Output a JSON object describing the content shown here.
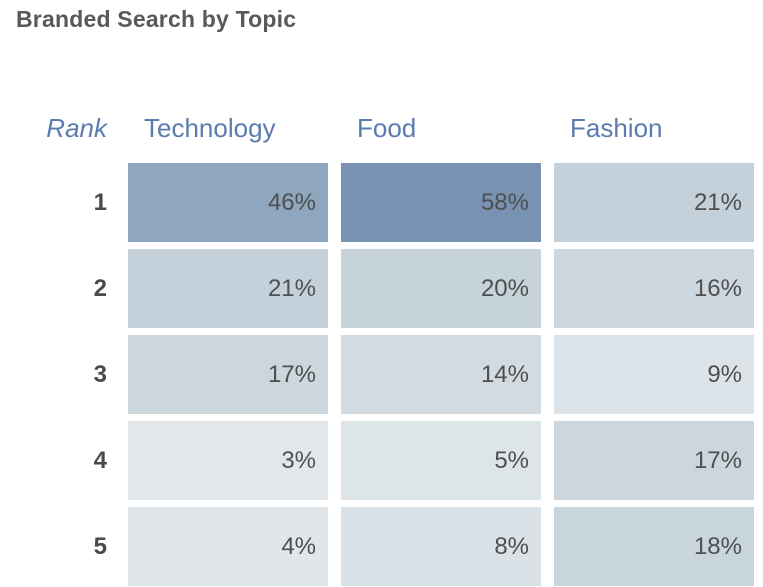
{
  "title": "Branded Search by Topic",
  "accent_color": "#5b7cae",
  "text_color": "#4f4f4f",
  "chart_data": {
    "type": "heatmap",
    "title": "Branded Search by Topic",
    "rank_header": "Rank",
    "columns": [
      "Technology",
      "Food",
      "Fashion"
    ],
    "categories": [
      "1",
      "2",
      "3",
      "4",
      "5"
    ],
    "series": [
      {
        "name": "Technology",
        "values": [
          46,
          21,
          17,
          3,
          4
        ]
      },
      {
        "name": "Food",
        "values": [
          58,
          20,
          14,
          5,
          8
        ]
      },
      {
        "name": "Fashion",
        "values": [
          21,
          16,
          9,
          17,
          18
        ]
      }
    ],
    "value_format": "percent",
    "legend": "none",
    "color_scale": {
      "low_value": 3,
      "low_color": "#e1e7eb",
      "high_value": 58,
      "high_color": "#7892b4"
    },
    "rows": [
      {
        "rank": "1",
        "cells": [
          {
            "value": "46%",
            "color": "#8fa6bf"
          },
          {
            "value": "58%",
            "color": "#7892b4"
          },
          {
            "value": "21%",
            "color": "#c5d1da"
          }
        ]
      },
      {
        "rank": "2",
        "cells": [
          {
            "value": "21%",
            "color": "#c5d1da"
          },
          {
            "value": "20%",
            "color": "#c7d3db"
          },
          {
            "value": "16%",
            "color": "#cdd7df"
          }
        ]
      },
      {
        "rank": "3",
        "cells": [
          {
            "value": "17%",
            "color": "#cbd6dd"
          },
          {
            "value": "14%",
            "color": "#d2dbe1"
          },
          {
            "value": "9%",
            "color": "#dde4e9"
          }
        ]
      },
      {
        "rank": "4",
        "cells": [
          {
            "value": "3%",
            "color": "#e1e7eb"
          },
          {
            "value": "5%",
            "color": "#dee5e9"
          },
          {
            "value": "17%",
            "color": "#cbd6dd"
          }
        ]
      },
      {
        "rank": "5",
        "cells": [
          {
            "value": "4%",
            "color": "#e0e6ea"
          },
          {
            "value": "8%",
            "color": "#dae2e8"
          },
          {
            "value": "18%",
            "color": "#c9d5dc"
          }
        ]
      }
    ]
  }
}
